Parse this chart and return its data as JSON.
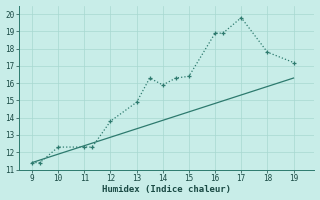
{
  "curve_x": [
    9,
    9.3,
    10,
    11,
    11.3,
    12,
    13,
    13.5,
    14,
    14.5,
    15,
    16,
    16.3,
    17,
    18,
    19
  ],
  "curve_y": [
    11.4,
    11.4,
    12.3,
    12.3,
    12.3,
    13.8,
    14.9,
    16.3,
    15.9,
    16.3,
    16.4,
    18.9,
    18.9,
    19.8,
    17.8,
    17.2
  ],
  "line_x": [
    9,
    19
  ],
  "line_y": [
    11.4,
    16.3
  ],
  "xlim": [
    8.5,
    19.8
  ],
  "ylim": [
    11,
    20.5
  ],
  "xticks": [
    9,
    10,
    11,
    12,
    13,
    14,
    15,
    16,
    17,
    18,
    19
  ],
  "yticks": [
    11,
    12,
    13,
    14,
    15,
    16,
    17,
    18,
    19,
    20
  ],
  "xlabel": "Humidex (Indice chaleur)",
  "line_color": "#2d7a6e",
  "bg_color": "#c8ede8",
  "grid_color": "#a8d8d0",
  "tick_color": "#1a4a44"
}
